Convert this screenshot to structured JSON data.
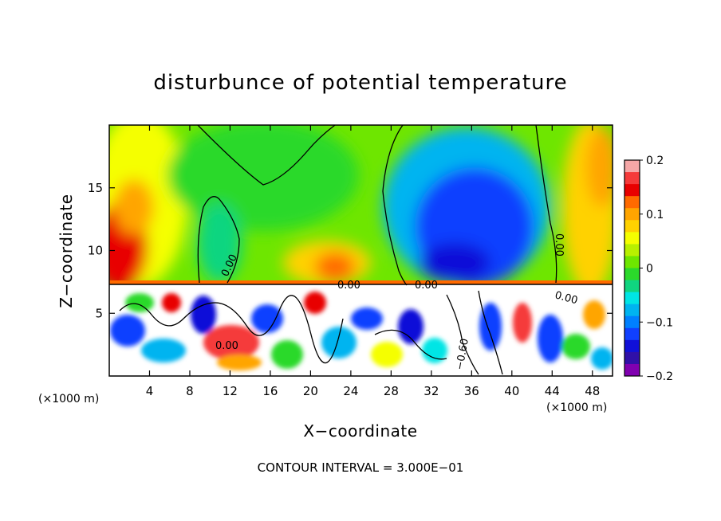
{
  "chart_data": {
    "type": "heatmap",
    "title": "disturbunce of potential temperature",
    "xlabel": "X−coordinate",
    "ylabel": "Z−coordinate",
    "x_unit_left": "(×1000 m)",
    "x_unit_right": "(×1000 m)",
    "xlim": [
      0,
      50
    ],
    "ylim": [
      0,
      20
    ],
    "x_ticks": [
      4,
      8,
      12,
      16,
      20,
      24,
      28,
      32,
      36,
      40,
      44,
      48
    ],
    "x_tick_labels": [
      "4",
      "8",
      "12",
      "16",
      "20",
      "24",
      "28",
      "32",
      "36",
      "40",
      "44",
      "48"
    ],
    "y_ticks": [
      5,
      10,
      15
    ],
    "y_tick_labels": [
      "5",
      "10",
      "15"
    ],
    "colorbar": {
      "range": [
        -0.2,
        0.2
      ],
      "ticks": [
        0.2,
        0.1,
        0,
        -0.1,
        -0.2
      ],
      "tick_labels": [
        "0.2",
        "0.1",
        "0",
        "−0.1",
        "−0.2"
      ],
      "colors": [
        "#f5a7a7",
        "#f53a3a",
        "#e80000",
        "#ff6a00",
        "#ffa500",
        "#ffd200",
        "#f5ff00",
        "#b8f000",
        "#6ee600",
        "#2bd92b",
        "#10d580",
        "#00e5e5",
        "#00b4f0",
        "#0080ff",
        "#1040ff",
        "#1010d8",
        "#3010a8",
        "#8000b0"
      ]
    },
    "contour_labels": [
      "0.00",
      "0.00",
      "0.00",
      "0.00",
      "−0.60",
      "0.00",
      "0.00"
    ],
    "contour_interval_text": "CONTOUR INTERVAL = 3.000E−01",
    "regions": [
      {
        "name": "upper-left-warm",
        "x": [
          0,
          6
        ],
        "z": [
          8,
          14
        ],
        "value": 0.15
      },
      {
        "name": "upper-left-mid",
        "x": [
          3,
          9
        ],
        "z": [
          8,
          20
        ],
        "value": 0.07
      },
      {
        "name": "upper-center-neutral",
        "x": [
          9,
          23
        ],
        "z": [
          13,
          20
        ],
        "value": 0.0
      },
      {
        "name": "left-column-cool",
        "x": [
          9,
          13
        ],
        "z": [
          7.5,
          14.5
        ],
        "value": -0.01
      },
      {
        "name": "center-warm-bump",
        "x": [
          17,
          25
        ],
        "z": [
          7.5,
          11
        ],
        "value": 0.09
      },
      {
        "name": "right-cold-plume",
        "x": [
          31,
          44
        ],
        "z": [
          8,
          19
        ],
        "value": -0.15
      },
      {
        "name": "right-edge-warm",
        "x": [
          44,
          50
        ],
        "z": [
          7.5,
          20
        ],
        "value": 0.1
      },
      {
        "name": "lower-turbulent-layer",
        "x": [
          0,
          50
        ],
        "z": [
          0,
          7.3
        ],
        "value": "mixed"
      }
    ]
  }
}
